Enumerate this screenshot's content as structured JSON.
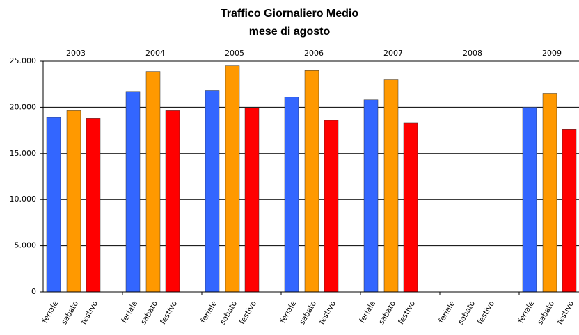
{
  "chart_data": {
    "type": "bar",
    "title": "Traffico Giornaliero Medio",
    "subtitle": "mese di agosto",
    "categories": [
      "2003",
      "2004",
      "2005",
      "2006",
      "2007",
      "2008",
      "2009"
    ],
    "series": [
      {
        "name": "feriale",
        "color": "#3366ff",
        "values": [
          18900,
          21700,
          21800,
          21100,
          20800,
          null,
          20000
        ]
      },
      {
        "name": "sabato",
        "color": "#ff9900",
        "values": [
          19700,
          23900,
          24500,
          24000,
          23000,
          null,
          21500
        ]
      },
      {
        "name": "festivo",
        "color": "#ff0000",
        "values": [
          18800,
          19700,
          19900,
          18600,
          18300,
          null,
          17600
        ]
      }
    ],
    "ylim": [
      0,
      25000
    ],
    "yticks": [
      0,
      {
        "value": 5000,
        "label": "5.000"
      },
      {
        "value": 10000,
        "label": "10.000"
      },
      {
        "value": 15000,
        "label": "15.000"
      },
      {
        "value": 20000,
        "label": "20.000"
      },
      {
        "value": 25000,
        "label": "25.000"
      }
    ],
    "grid": true
  }
}
